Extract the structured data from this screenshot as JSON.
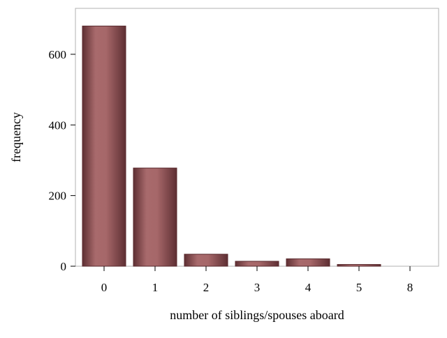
{
  "chart_data": {
    "type": "bar",
    "categories": [
      "0",
      "1",
      "2",
      "3",
      "4",
      "5",
      "8"
    ],
    "values": [
      680,
      278,
      34,
      14,
      21,
      5,
      0
    ],
    "title": "",
    "xlabel": "number of siblings/spouses aboard",
    "ylabel": "frequency",
    "ylim": [
      0,
      730
    ],
    "yticks": [
      0,
      200,
      400,
      600
    ],
    "grid": false,
    "legend": "none",
    "colors": {
      "bar_edge": "#5a2a2e",
      "bar_dark": "#5e2f33",
      "bar_light": "#a86a6c",
      "frame": "#b0b0b0"
    }
  }
}
